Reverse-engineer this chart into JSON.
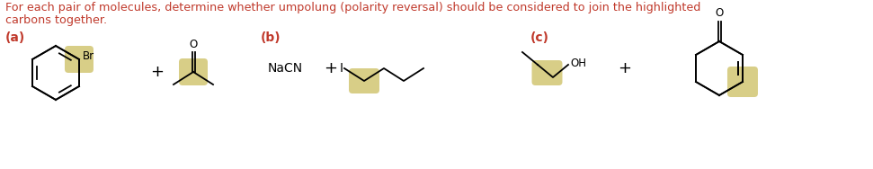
{
  "title_text": "For each pair of molecules, determine whether umpolung (polarity reversal) should be considered to join the highlighted",
  "title_text2": "carbons together.",
  "text_color": "#c0392b",
  "bg_color": "#ffffff",
  "highlight_color": "#d4c97a",
  "section_a": "(a)",
  "section_b": "(b)",
  "section_c": "(c)",
  "lw": 1.3
}
